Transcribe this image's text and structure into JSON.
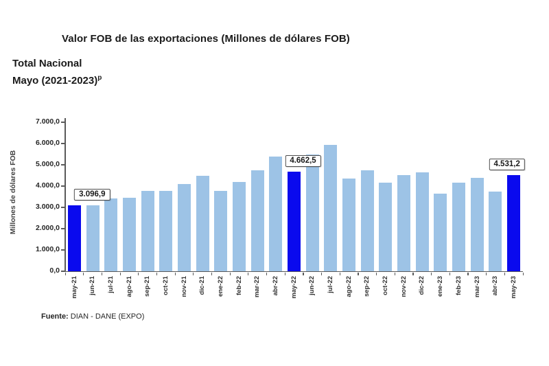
{
  "header": {
    "chart_title": "Valor FOB de las exportaciones (Millones de dólares FOB)",
    "subtitle_line1": "Total Nacional",
    "subtitle_line2": "Mayo (2021-2023)",
    "subtitle_superscript": "p"
  },
  "source": {
    "prefix": "Fuente:",
    "text": " DIAN - DANE (EXPO)"
  },
  "chart_data": {
    "type": "bar",
    "title": "Valor FOB de las exportaciones (Millones de dólares FOB)",
    "subtitle": "Total Nacional, Mayo (2021-2023)p",
    "xlabel": "",
    "ylabel": "Millones de dólares FOB",
    "ylim": [
      0,
      7000
    ],
    "grid": false,
    "legend": "none",
    "ytick_labels": [
      "0,0",
      "1.000,0",
      "2.000,0",
      "3.000,0",
      "4.000,0",
      "5.000,0",
      "6.000,0",
      "7.000,0"
    ],
    "categories": [
      "may-21",
      "jun-21",
      "jul-21",
      "ago-21",
      "sep-21",
      "oct-21",
      "nov-21",
      "dic-21",
      "ene-22",
      "feb-22",
      "mar-22",
      "abr-22",
      "may-22",
      "jun-22",
      "jul-22",
      "ago-22",
      "sep-22",
      "oct-22",
      "nov-22",
      "dic-22",
      "ene-23",
      "feb-23",
      "mar-23",
      "abr-23",
      "may-23"
    ],
    "values": [
      3096.9,
      3110,
      3420,
      3440,
      3760,
      3780,
      4110,
      4500,
      3790,
      4180,
      4750,
      5390,
      4662.5,
      5500,
      5930,
      4360,
      4750,
      4170,
      4520,
      4630,
      3630,
      4160,
      4390,
      3730,
      4531.2
    ],
    "annotations": [
      {
        "index": 0,
        "label": "3.096,9"
      },
      {
        "index": 12,
        "label": "4.662,5"
      },
      {
        "index": 24,
        "label": "4.531,2"
      }
    ],
    "colors": {
      "bar": "#9DC3E6",
      "highlight": "#0A0AEE",
      "axis": "#595959"
    }
  }
}
